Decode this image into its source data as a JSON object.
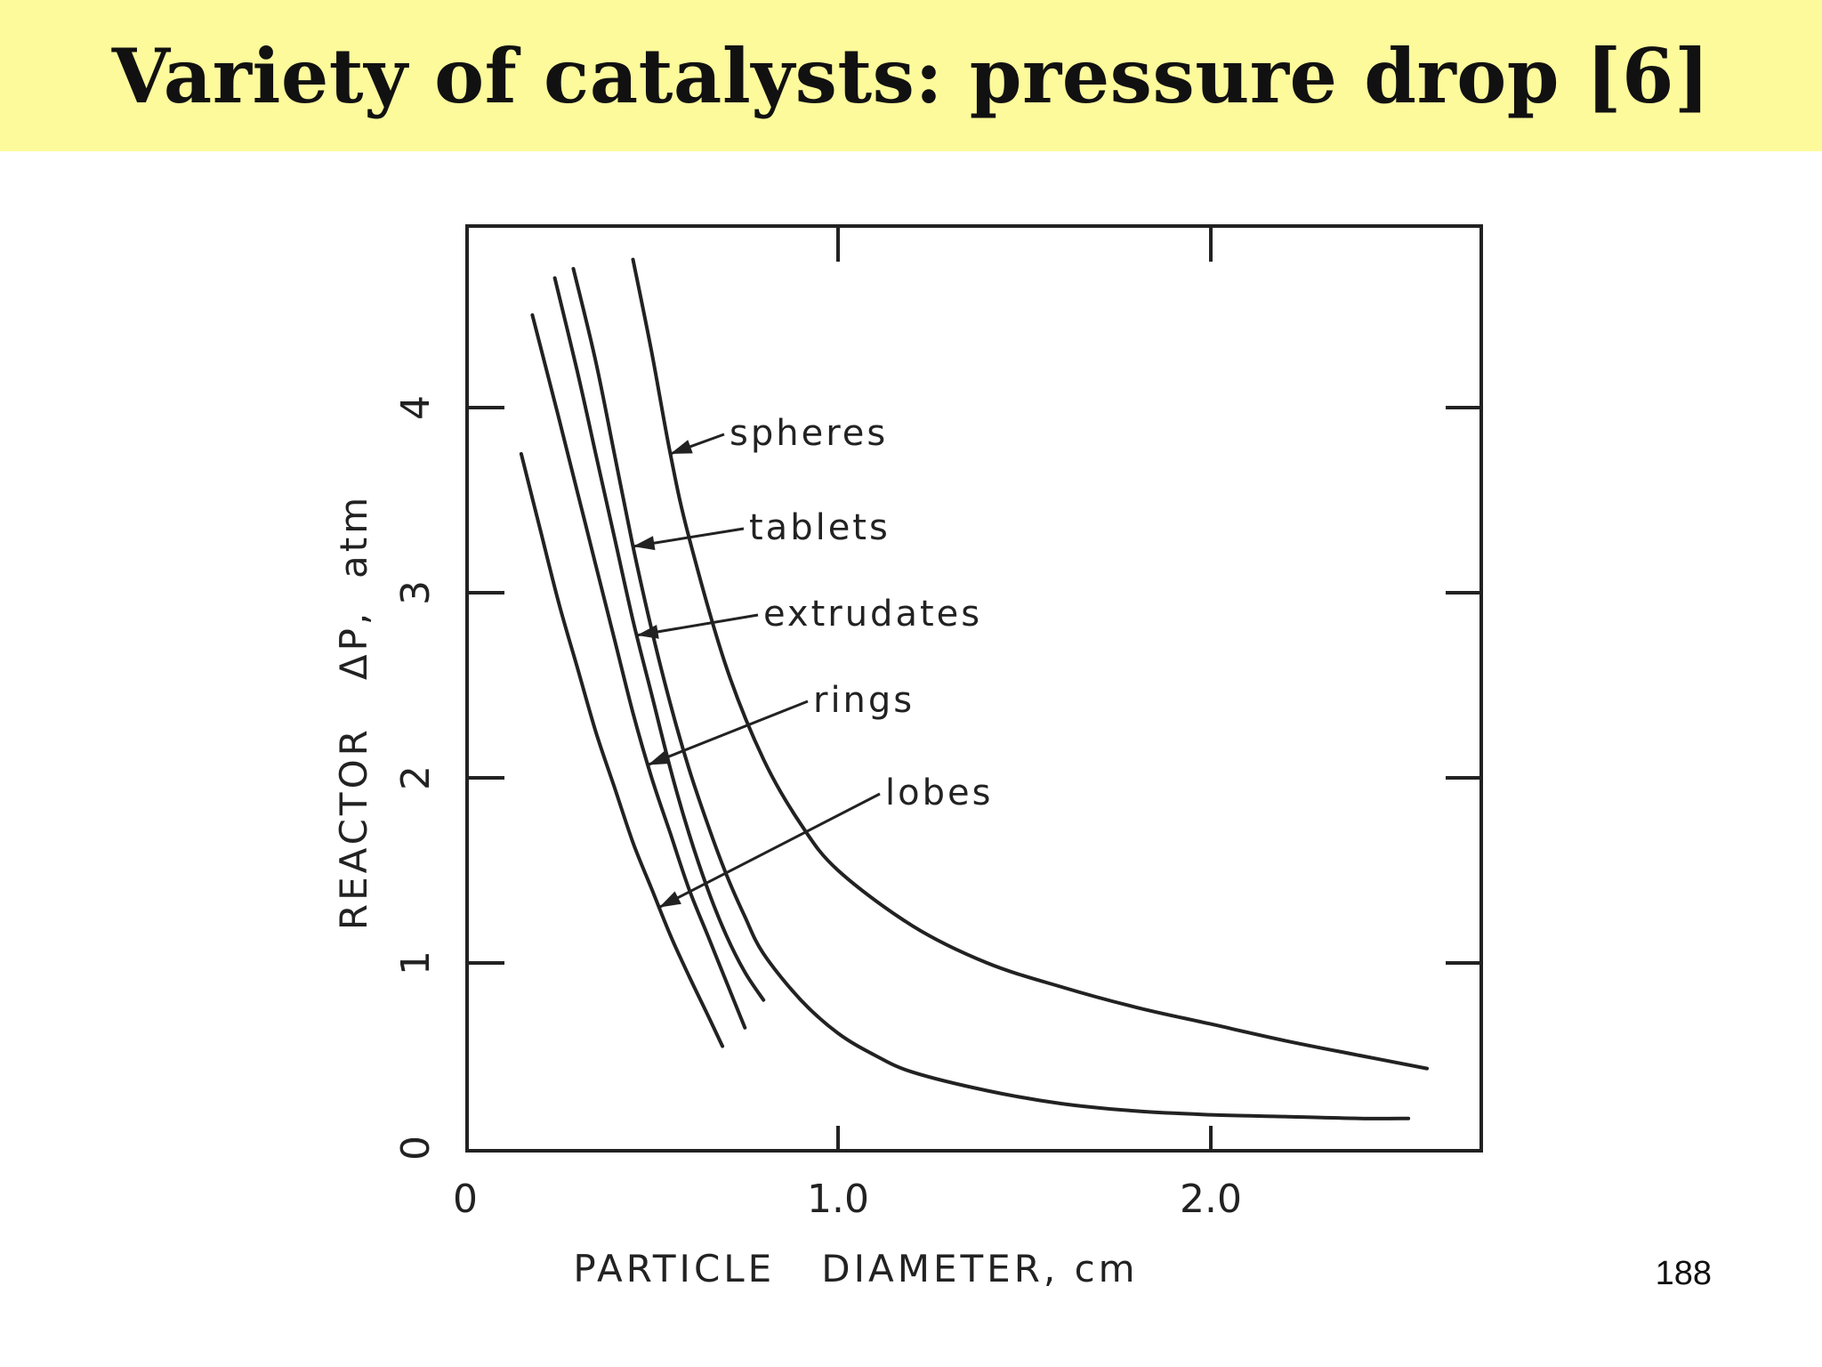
{
  "slide": {
    "title": "Variety of catalysts: pressure drop [6]",
    "page_number": "188",
    "banner_color": "#fdfa9c"
  },
  "chart_data": {
    "type": "line",
    "title": "",
    "xlabel": "PARTICLE   DIAMETER, cm",
    "ylabel": "REACTOR   ΔP,  atm",
    "xlim": [
      0,
      2.7
    ],
    "ylim": [
      0,
      5.0
    ],
    "xticks": [
      {
        "value": 0,
        "label": "0"
      },
      {
        "value": 1.0,
        "label": "1.0"
      },
      {
        "value": 2.0,
        "label": "2.0"
      }
    ],
    "yticks": [
      {
        "value": 0,
        "label": "0"
      },
      {
        "value": 1,
        "label": "1"
      },
      {
        "value": 2,
        "label": "2"
      },
      {
        "value": 3,
        "label": "3"
      },
      {
        "value": 4,
        "label": "4"
      }
    ],
    "grid": false,
    "legend": "inline labels with leader arrows",
    "line_color": "#222222",
    "series": [
      {
        "name": "spheres",
        "x": [
          0.45,
          0.5,
          0.55,
          0.6,
          0.7,
          0.8,
          0.9,
          1.0,
          1.2,
          1.4,
          1.6,
          1.8,
          2.0,
          2.2,
          2.4,
          2.58
        ],
        "y": [
          4.8,
          4.3,
          3.75,
          3.3,
          2.6,
          2.1,
          1.75,
          1.5,
          1.2,
          1.0,
          0.87,
          0.76,
          0.67,
          0.58,
          0.5,
          0.43
        ]
      },
      {
        "name": "tablets",
        "x": [
          0.29,
          0.35,
          0.4,
          0.45,
          0.5,
          0.55,
          0.6,
          0.65,
          0.7,
          0.75,
          0.8,
          0.9,
          1.0,
          1.1,
          1.2,
          1.4,
          1.6,
          1.8,
          2.0,
          2.2,
          2.4,
          2.53
        ],
        "y": [
          4.75,
          4.25,
          3.75,
          3.25,
          2.8,
          2.4,
          2.05,
          1.75,
          1.48,
          1.25,
          1.05,
          0.8,
          0.62,
          0.5,
          0.41,
          0.31,
          0.24,
          0.2,
          0.18,
          0.17,
          0.16,
          0.16
        ]
      },
      {
        "name": "extrudates",
        "x": [
          0.24,
          0.3,
          0.35,
          0.4,
          0.45,
          0.5,
          0.55,
          0.6,
          0.65,
          0.7,
          0.75,
          0.8
        ],
        "y": [
          4.7,
          4.2,
          3.75,
          3.3,
          2.85,
          2.45,
          2.05,
          1.7,
          1.4,
          1.15,
          0.95,
          0.8
        ]
      },
      {
        "name": "rings",
        "x": [
          0.18,
          0.25,
          0.3,
          0.35,
          0.4,
          0.45,
          0.5,
          0.55,
          0.6,
          0.65,
          0.7,
          0.75
        ],
        "y": [
          4.5,
          3.95,
          3.55,
          3.15,
          2.75,
          2.35,
          2.0,
          1.7,
          1.4,
          1.15,
          0.9,
          0.65
        ]
      },
      {
        "name": "lobes",
        "x": [
          0.15,
          0.2,
          0.25,
          0.3,
          0.35,
          0.4,
          0.45,
          0.5,
          0.55,
          0.6,
          0.65,
          0.69
        ],
        "y": [
          3.75,
          3.35,
          2.95,
          2.6,
          2.25,
          1.95,
          1.65,
          1.4,
          1.15,
          0.93,
          0.72,
          0.55
        ]
      }
    ],
    "annotations": [
      {
        "text": "spheres",
        "series": "spheres",
        "at_x": 0.55
      },
      {
        "text": "tablets",
        "series": "tablets",
        "at_x": 0.45
      },
      {
        "text": "extrudates",
        "series": "extrudates",
        "at_x": 0.46
      },
      {
        "text": "rings",
        "series": "rings",
        "at_x": 0.49
      },
      {
        "text": "lobes",
        "series": "lobes",
        "at_x": 0.52
      }
    ]
  }
}
